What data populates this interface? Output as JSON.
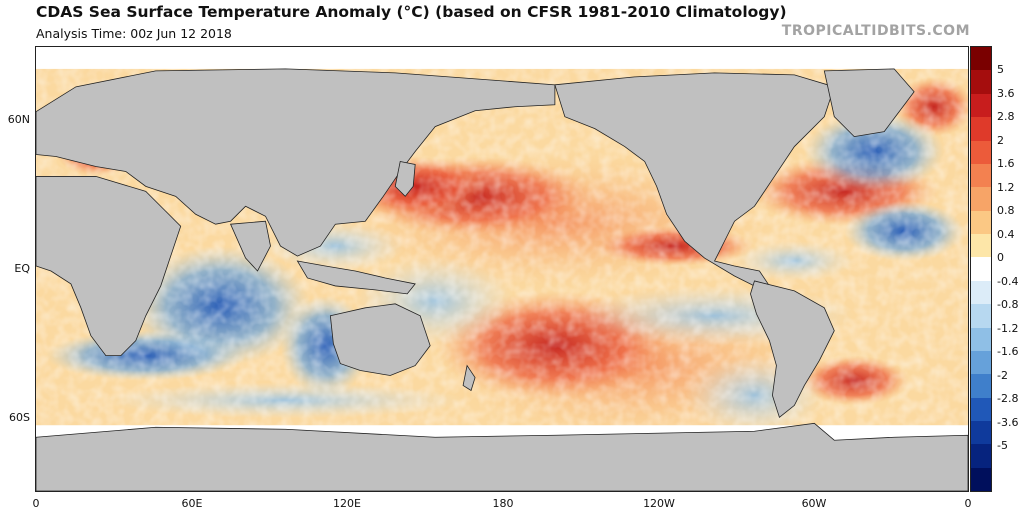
{
  "header": {
    "title": "CDAS Sea Surface Temperature Anomaly (°C) (based on CFSR 1981-2010 Climatology)",
    "analysis_time": "Analysis Time: 00z Jun 12 2018",
    "credit": "TROPICALTIDBITS.COM"
  },
  "map": {
    "lat_labels": [
      "60N",
      "EQ",
      "60S"
    ],
    "lon_labels": [
      "0",
      "60E",
      "120E",
      "180",
      "120W",
      "60W",
      "0"
    ],
    "colors": {
      "land": "#c0c0c0",
      "ice": "#ffffff",
      "border": "#222222"
    }
  },
  "colorbar": {
    "labels": [
      "5",
      "3.6",
      "2.8",
      "2",
      "1.6",
      "1.2",
      "0.8",
      "0.4",
      "0",
      "-0.4",
      "-0.8",
      "-1.2",
      "-1.6",
      "-2",
      "-2.8",
      "-3.6",
      "-5"
    ],
    "colors": [
      "#7a0000",
      "#a50d0d",
      "#c81d1d",
      "#df3a2a",
      "#ec5b3a",
      "#f38150",
      "#f7a467",
      "#fbc884",
      "#fde6a8",
      "#ffffff",
      "#dcecf8",
      "#b7d8f0",
      "#8fbfe6",
      "#66a1da",
      "#3f7fcb",
      "#2058b8",
      "#0f3a9c",
      "#06237e",
      "#000f5c"
    ]
  }
}
